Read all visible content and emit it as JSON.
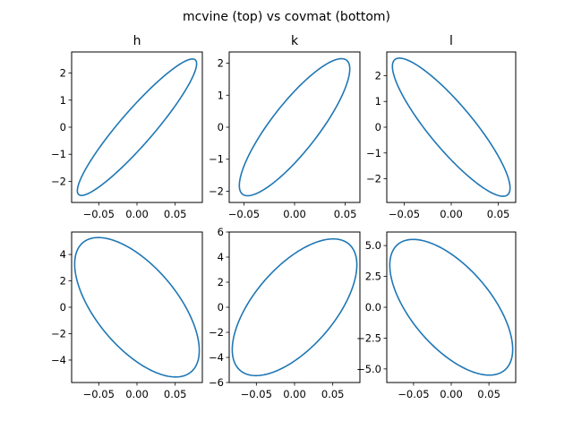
{
  "figure": {
    "suptitle": "mcvine (top) vs covmat (bottom)",
    "line_color": "#1f77b4"
  },
  "chart_data": [
    {
      "type": "line",
      "subplot": "top-left",
      "title": "h",
      "xlim": [
        -0.0855,
        0.0855
      ],
      "ylim": [
        -2.78,
        2.78
      ],
      "xticks": [
        -0.05,
        0.0,
        0.05
      ],
      "xtick_labels": [
        "−0.05",
        "0.00",
        "0.05"
      ],
      "yticks": [
        -2,
        -1,
        0,
        1,
        2
      ],
      "ytick_labels": [
        "−2",
        "−1",
        "0",
        "1",
        "2"
      ],
      "ellipse": {
        "center": [
          0,
          0
        ],
        "x_extent": 0.078,
        "y_extent": 2.52,
        "corr": 0.93
      }
    },
    {
      "type": "line",
      "subplot": "top-center",
      "title": "k",
      "xlim": [
        -0.0645,
        0.0645
      ],
      "ylim": [
        -2.35,
        2.35
      ],
      "xticks": [
        -0.05,
        0.0,
        0.05
      ],
      "xtick_labels": [
        "−0.05",
        "0.00",
        "0.05"
      ],
      "yticks": [
        -2,
        -1,
        0,
        1,
        2
      ],
      "ytick_labels": [
        "−2",
        "−1",
        "0",
        "1",
        "2"
      ],
      "ellipse": {
        "center": [
          0,
          0
        ],
        "x_extent": 0.0545,
        "y_extent": 2.14,
        "corr": 0.85
      }
    },
    {
      "type": "line",
      "subplot": "top-right",
      "title": "l",
      "xlim": [
        -0.0685,
        0.0685
      ],
      "ylim": [
        -2.92,
        2.92
      ],
      "xticks": [
        -0.05,
        0.0,
        0.05
      ],
      "xtick_labels": [
        "−0.05",
        "0.00",
        "0.05"
      ],
      "yticks": [
        -2,
        -1,
        0,
        1,
        2
      ],
      "ytick_labels": [
        "−2",
        "−1",
        "0",
        "1",
        "2"
      ],
      "ellipse": {
        "center": [
          0,
          0
        ],
        "x_extent": 0.0625,
        "y_extent": 2.68,
        "corr": -0.88
      }
    },
    {
      "type": "line",
      "subplot": "bottom-left",
      "title": "",
      "xlim": [
        -0.0855,
        0.0855
      ],
      "ylim": [
        -5.7,
        5.7
      ],
      "xticks": [
        -0.05,
        0.0,
        0.05
      ],
      "xtick_labels": [
        "−0.05",
        "0.00",
        "0.05"
      ],
      "yticks": [
        -4,
        -2,
        0,
        2,
        4
      ],
      "ytick_labels": [
        "−4",
        "−2",
        "0",
        "2",
        "4"
      ],
      "ellipse": {
        "center": [
          0,
          0
        ],
        "x_extent": 0.0815,
        "y_extent": 5.28,
        "corr": -0.62
      }
    },
    {
      "type": "line",
      "subplot": "bottom-center",
      "title": "",
      "xlim": [
        -0.0855,
        0.0855
      ],
      "ylim": [
        -6.0,
        6.0
      ],
      "xticks": [
        -0.05,
        0.0,
        0.05
      ],
      "xtick_labels": [
        "−0.05",
        "0.00",
        "0.05"
      ],
      "yticks": [
        -6,
        -4,
        -2,
        0,
        2,
        4,
        6
      ],
      "ytick_labels": [
        "−6",
        "−4",
        "−2",
        "0",
        "2",
        "4",
        "6"
      ],
      "ellipse": {
        "center": [
          0,
          0
        ],
        "x_extent": 0.0815,
        "y_extent": 5.45,
        "corr": 0.62
      }
    },
    {
      "type": "line",
      "subplot": "bottom-right",
      "title": "",
      "xlim": [
        -0.0855,
        0.0855
      ],
      "ylim": [
        -6.1,
        6.1
      ],
      "xticks": [
        -0.05,
        0.0,
        0.05
      ],
      "xtick_labels": [
        "−0.05",
        "0.00",
        "0.05"
      ],
      "yticks": [
        -5.0,
        -2.5,
        0.0,
        2.5,
        5.0
      ],
      "ytick_labels": [
        "−5.0",
        "−2.5",
        "0.0",
        "2.5",
        "5.0"
      ],
      "ellipse": {
        "center": [
          0,
          0
        ],
        "x_extent": 0.0815,
        "y_extent": 5.5,
        "corr": -0.62
      }
    }
  ]
}
